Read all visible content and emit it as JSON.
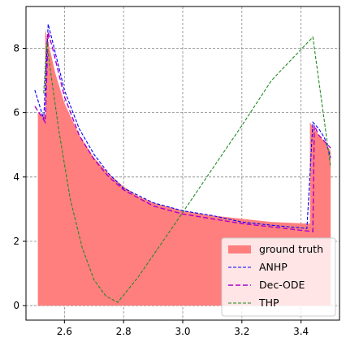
{
  "chart_data": {
    "type": "area",
    "title": "",
    "xlabel": "",
    "ylabel": "",
    "xlim": [
      2.47,
      3.53
    ],
    "ylim": [
      -0.45,
      9.3
    ],
    "grid": true,
    "legend_position": "lower right",
    "x_ticks": [
      2.6,
      2.8,
      3.0,
      3.2,
      3.4
    ],
    "x_tick_labels": [
      "2.6",
      "2.8",
      "3.0",
      "3.2",
      "3.4"
    ],
    "y_ticks": [
      0,
      2,
      4,
      6,
      8
    ],
    "y_tick_labels": [
      "0",
      "2",
      "4",
      "6",
      "8"
    ],
    "series": [
      {
        "name": "ground truth",
        "style": "filled-area",
        "color": "#ff7f7f",
        "x": [
          2.51,
          2.51,
          2.535,
          2.535,
          2.55,
          2.57,
          2.6,
          2.65,
          2.7,
          2.75,
          2.8,
          2.85,
          2.9,
          3.0,
          3.1,
          3.2,
          3.3,
          3.43,
          3.43,
          3.445,
          3.46,
          3.48,
          3.5,
          3.5
        ],
        "y": [
          0,
          6.0,
          5.9,
          8.6,
          8.0,
          7.2,
          6.3,
          5.3,
          4.6,
          4.1,
          3.7,
          3.4,
          3.2,
          2.95,
          2.8,
          2.7,
          2.6,
          2.55,
          5.7,
          5.5,
          5.3,
          5.1,
          4.8,
          0
        ]
      },
      {
        "name": "ANHP",
        "style": "dashed",
        "color": "#0000ff",
        "x": [
          2.5,
          2.53,
          2.545,
          2.56,
          2.6,
          2.65,
          2.7,
          2.75,
          2.8,
          2.9,
          3.0,
          3.1,
          3.2,
          3.3,
          3.42,
          3.44,
          3.46,
          3.48,
          3.5
        ],
        "y": [
          6.7,
          5.8,
          8.75,
          8.2,
          6.7,
          5.5,
          4.7,
          4.1,
          3.65,
          3.2,
          2.95,
          2.8,
          2.6,
          2.5,
          2.4,
          5.7,
          5.5,
          5.2,
          4.6
        ]
      },
      {
        "name": "Dec-ODE",
        "style": "dashed",
        "color": "#aa00cc",
        "x": [
          2.5,
          2.535,
          2.545,
          2.56,
          2.6,
          2.65,
          2.7,
          2.75,
          2.8,
          2.9,
          3.0,
          3.1,
          3.2,
          3.3,
          3.44,
          3.445,
          3.46,
          3.48,
          3.5
        ],
        "y": [
          6.2,
          5.7,
          8.5,
          8.0,
          6.5,
          5.3,
          4.55,
          4.0,
          3.6,
          3.1,
          2.85,
          2.7,
          2.55,
          2.45,
          2.3,
          5.6,
          5.3,
          5.1,
          4.9
        ]
      },
      {
        "name": "THP",
        "style": "dashed",
        "color": "#228b22",
        "x": [
          2.53,
          2.54,
          2.55,
          2.58,
          2.62,
          2.66,
          2.7,
          2.74,
          2.78,
          2.85,
          3.0,
          3.2,
          3.3,
          3.44,
          3.5
        ],
        "y": [
          6.6,
          8.2,
          7.5,
          5.5,
          3.3,
          1.8,
          0.8,
          0.3,
          0.1,
          0.9,
          2.9,
          5.6,
          7.0,
          8.35,
          4.3
        ]
      }
    ]
  }
}
